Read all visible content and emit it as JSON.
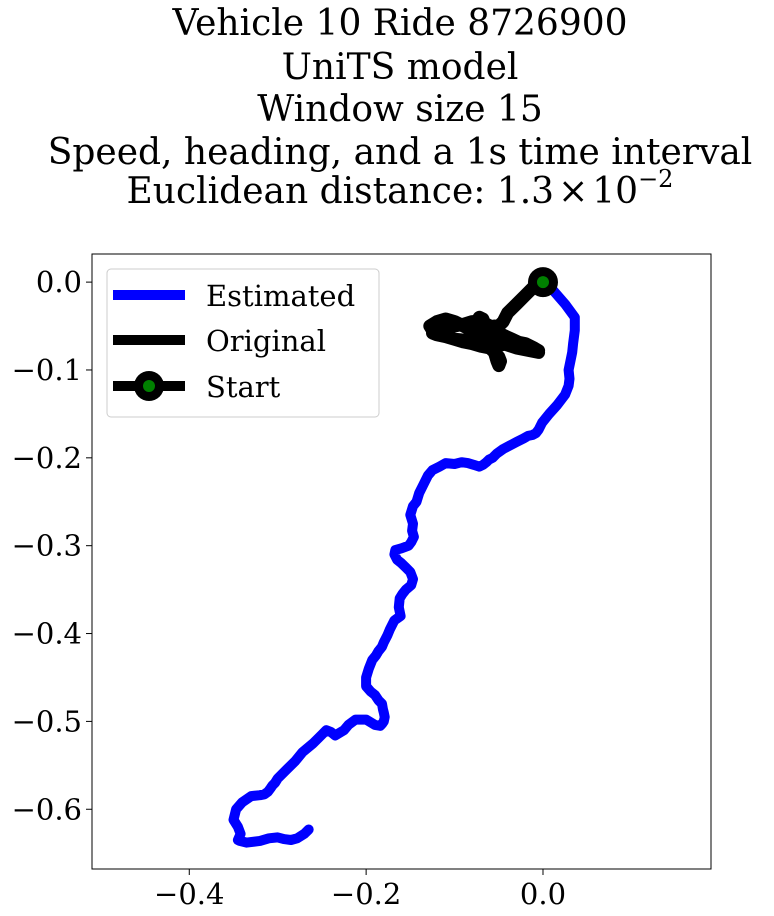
{
  "chart_data": {
    "type": "line",
    "title_lines": [
      "Vehicle 10 Ride 8726900",
      "UniTS model",
      "Window size 15",
      "Speed, heading, and a 1s time interval"
    ],
    "title_last_prefix": "Euclidean distance: 1.3",
    "title_last_times": "×",
    "title_last_base": "10",
    "title_last_exp": "−2",
    "xlim": [
      -0.51,
      0.19
    ],
    "ylim": [
      -0.668,
      0.032
    ],
    "x_ticks": [
      -0.4,
      -0.2,
      0.0
    ],
    "x_tick_labels": [
      "−0.4",
      "−0.2",
      "0.0"
    ],
    "y_ticks": [
      0.0,
      -0.1,
      -0.2,
      -0.3,
      -0.4,
      -0.5,
      -0.6
    ],
    "y_tick_labels": [
      "0.0",
      "−0.1",
      "−0.2",
      "−0.3",
      "−0.4",
      "−0.5",
      "−0.6"
    ],
    "grid": false,
    "legend_position": "top-left",
    "series": [
      {
        "name": "Estimated",
        "color": "#0000ff",
        "x": [
          0.0,
          0.012,
          0.025,
          0.036,
          0.036,
          0.034,
          0.033,
          0.031,
          0.029,
          0.03,
          0.029,
          0.025,
          0.016,
          0.007,
          -0.001,
          -0.005,
          -0.008,
          -0.012,
          -0.017,
          -0.022,
          -0.03,
          -0.045,
          -0.052,
          -0.057,
          -0.061,
          -0.064,
          -0.068,
          -0.072,
          -0.078,
          -0.085,
          -0.092,
          -0.1,
          -0.11,
          -0.117,
          -0.125,
          -0.13,
          -0.135,
          -0.14,
          -0.143,
          -0.147,
          -0.15,
          -0.147,
          -0.148,
          -0.146,
          -0.149,
          -0.152,
          -0.16,
          -0.167,
          -0.168,
          -0.165,
          -0.16,
          -0.155,
          -0.15,
          -0.147,
          -0.149,
          -0.155,
          -0.159,
          -0.162,
          -0.163,
          -0.161,
          -0.168,
          -0.173,
          -0.176,
          -0.18,
          -0.182,
          -0.186,
          -0.189,
          -0.193,
          -0.197,
          -0.2,
          -0.2,
          -0.195,
          -0.19,
          -0.186,
          -0.182,
          -0.181,
          -0.18,
          -0.179,
          -0.18,
          -0.182,
          -0.184,
          -0.19,
          -0.2,
          -0.212,
          -0.22,
          -0.225,
          -0.23,
          -0.235,
          -0.24,
          -0.245,
          -0.25,
          -0.26,
          -0.272,
          -0.28,
          -0.29,
          -0.3,
          -0.303,
          -0.306,
          -0.308,
          -0.311,
          -0.315,
          -0.32,
          -0.33,
          -0.34,
          -0.347,
          -0.35,
          -0.345,
          -0.342,
          -0.345,
          -0.343,
          -0.335,
          -0.32,
          -0.31,
          -0.3,
          -0.293,
          -0.285,
          -0.278,
          -0.27,
          -0.265
        ],
        "y": [
          0.0,
          -0.01,
          -0.025,
          -0.04,
          -0.055,
          -0.07,
          -0.08,
          -0.09,
          -0.1,
          -0.11,
          -0.118,
          -0.128,
          -0.14,
          -0.15,
          -0.16,
          -0.168,
          -0.172,
          -0.174,
          -0.175,
          -0.178,
          -0.182,
          -0.19,
          -0.195,
          -0.2,
          -0.202,
          -0.205,
          -0.208,
          -0.21,
          -0.208,
          -0.206,
          -0.205,
          -0.207,
          -0.206,
          -0.21,
          -0.214,
          -0.22,
          -0.23,
          -0.24,
          -0.25,
          -0.255,
          -0.265,
          -0.275,
          -0.283,
          -0.29,
          -0.296,
          -0.3,
          -0.303,
          -0.305,
          -0.31,
          -0.316,
          -0.32,
          -0.325,
          -0.33,
          -0.338,
          -0.345,
          -0.35,
          -0.355,
          -0.36,
          -0.37,
          -0.38,
          -0.385,
          -0.395,
          -0.402,
          -0.41,
          -0.415,
          -0.42,
          -0.425,
          -0.43,
          -0.44,
          -0.45,
          -0.46,
          -0.466,
          -0.47,
          -0.476,
          -0.48,
          -0.486,
          -0.49,
          -0.495,
          -0.5,
          -0.503,
          -0.505,
          -0.504,
          -0.498,
          -0.498,
          -0.504,
          -0.51,
          -0.513,
          -0.516,
          -0.512,
          -0.51,
          -0.515,
          -0.525,
          -0.535,
          -0.545,
          -0.555,
          -0.565,
          -0.57,
          -0.573,
          -0.576,
          -0.58,
          -0.583,
          -0.584,
          -0.585,
          -0.592,
          -0.6,
          -0.612,
          -0.62,
          -0.628,
          -0.635,
          -0.636,
          -0.638,
          -0.636,
          -0.633,
          -0.632,
          -0.634,
          -0.635,
          -0.633,
          -0.628,
          -0.623
        ]
      },
      {
        "name": "Original",
        "color": "#000000",
        "x": [
          0.0,
          -0.01,
          -0.02,
          -0.03,
          -0.04,
          -0.045,
          -0.05,
          -0.055,
          -0.06,
          -0.07,
          -0.08,
          -0.09,
          -0.1,
          -0.11,
          -0.12,
          -0.125,
          -0.12,
          -0.11,
          -0.1,
          -0.09,
          -0.08,
          -0.07,
          -0.06,
          -0.05,
          -0.04,
          -0.03,
          -0.02,
          -0.01,
          -0.005,
          -0.015,
          -0.03,
          -0.045,
          -0.06,
          -0.07,
          -0.075,
          -0.072,
          -0.068,
          -0.065,
          -0.062,
          -0.058,
          -0.055,
          -0.052,
          -0.05,
          -0.048,
          -0.05,
          -0.055,
          -0.06,
          -0.065,
          -0.07,
          -0.075,
          -0.08,
          -0.09,
          -0.1,
          -0.11,
          -0.12,
          -0.128,
          -0.125,
          -0.12,
          -0.11,
          -0.1,
          -0.09,
          -0.08,
          -0.07,
          -0.06,
          -0.05,
          -0.04,
          -0.03,
          -0.02,
          -0.01,
          -0.005,
          -0.02,
          -0.035,
          -0.05,
          -0.055
        ],
        "y": [
          0.0,
          -0.005,
          -0.015,
          -0.025,
          -0.035,
          -0.045,
          -0.05,
          -0.055,
          -0.05,
          -0.045,
          -0.045,
          -0.048,
          -0.05,
          -0.052,
          -0.055,
          -0.058,
          -0.06,
          -0.062,
          -0.065,
          -0.068,
          -0.07,
          -0.073,
          -0.075,
          -0.072,
          -0.07,
          -0.068,
          -0.07,
          -0.075,
          -0.08,
          -0.078,
          -0.075,
          -0.07,
          -0.06,
          -0.05,
          -0.045,
          -0.04,
          -0.042,
          -0.05,
          -0.06,
          -0.07,
          -0.08,
          -0.09,
          -0.095,
          -0.09,
          -0.085,
          -0.08,
          -0.075,
          -0.07,
          -0.065,
          -0.06,
          -0.055,
          -0.05,
          -0.045,
          -0.042,
          -0.045,
          -0.05,
          -0.055,
          -0.06,
          -0.062,
          -0.065,
          -0.066,
          -0.068,
          -0.07,
          -0.07,
          -0.068,
          -0.066,
          -0.068,
          -0.072,
          -0.075,
          -0.078,
          -0.072,
          -0.065,
          -0.058,
          -0.05
        ]
      }
    ],
    "start_point": {
      "name": "Start",
      "x": 0.0,
      "y": 0.0,
      "outer_color": "#000000",
      "inner_color": "#008000"
    }
  }
}
